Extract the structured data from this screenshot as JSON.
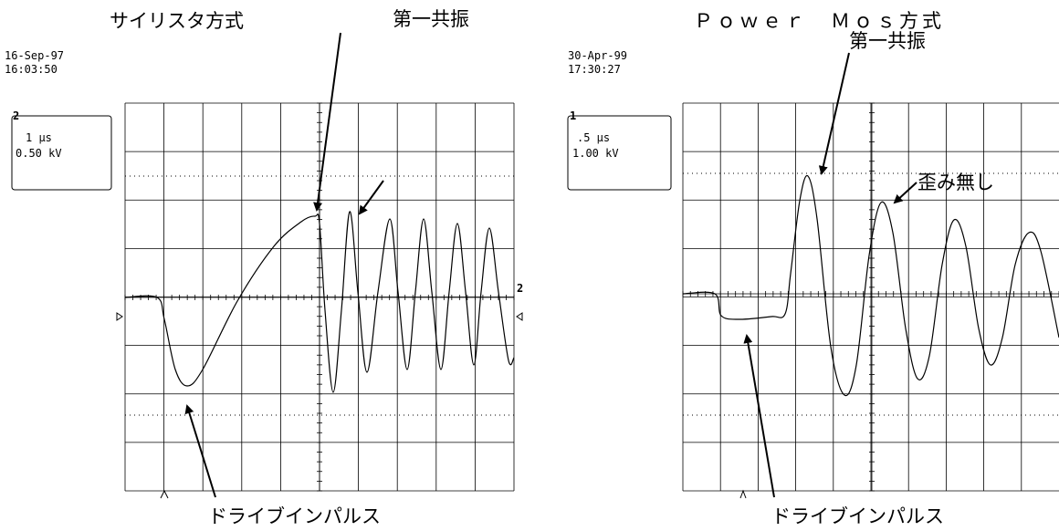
{
  "left": {
    "title": "サイリスタ方式",
    "date": "16-Sep-97",
    "time": "16:03:50",
    "channel": "2",
    "timebase": "1 μs",
    "scale": "0.50 kV",
    "trace_marker": "2",
    "annotations": [
      "第一共振",
      "ドライブインパルス"
    ]
  },
  "right": {
    "title": "Ｐｏｗｅｒ　Ｍｏｓ方式",
    "date": "30-Apr-99",
    "time": "17:30:27",
    "channel": "1",
    "timebase": ".5 μs",
    "scale": "1.00 kV",
    "annotations": [
      "第一共振",
      "歪み無し",
      "ドライブインパルス"
    ]
  }
}
